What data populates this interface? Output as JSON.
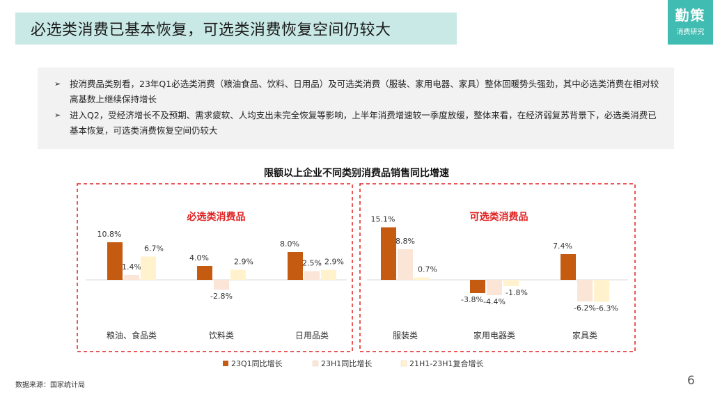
{
  "header": {
    "title": "必选类消费已基本恢复，可选类消费恢复空间仍较大"
  },
  "logo": {
    "name": "勤策",
    "sub": "消费研究"
  },
  "summary": {
    "bullets": [
      "按消费品类别看，23年Q1必选类消费（粮油食品、饮料、日用品）及可选类消费（服装、家用电器、家具）整体回暖势头强劲，其中必选类消费在相对较高基数上继续保持增长",
      "进入Q2，受经济增长不及预期、需求疲软、人均支出未完全恢复等影响，上半年消费增速较一季度放缓，整体来看，在经济弱复苏背景下，必选类消费已基本恢复，可选类消费恢复空间仍较大"
    ]
  },
  "footer": {
    "source": "数据来源：国家统计局",
    "page": "6"
  },
  "chart_data": {
    "type": "bar",
    "title": "限额以上企业不同类别消费品销售同比增速",
    "categories": [
      "粮油、食品类",
      "饮料类",
      "日用品类",
      "服装类",
      "家用电器类",
      "家具类"
    ],
    "groups": [
      {
        "label": "必选类消费品",
        "categories": [
          "粮油、食品类",
          "饮料类",
          "日用品类"
        ]
      },
      {
        "label": "可选类消费品",
        "categories": [
          "服装类",
          "家用电器类",
          "家具类"
        ]
      }
    ],
    "series": [
      {
        "name": "23Q1同比增长",
        "values": [
          10.8,
          4.0,
          8.0,
          15.1,
          -3.8,
          7.4
        ],
        "labels": [
          "10.8%",
          "4.0%",
          "8.0%",
          "15.1%",
          "-3.8%",
          "7.4%"
        ],
        "color": "#c55a11"
      },
      {
        "name": "23H1同比增长",
        "values": [
          1.4,
          -2.8,
          2.5,
          8.8,
          -4.4,
          -6.2
        ],
        "labels": [
          "1.4%",
          "-2.8%",
          "2.5%",
          "8.8%",
          "-4.4%",
          "-6.2%"
        ],
        "color": "#fbe5d6"
      },
      {
        "name": "21H1-23H1复合增长",
        "values": [
          6.7,
          2.9,
          2.9,
          0.7,
          -1.8,
          -6.3
        ],
        "labels": [
          "6.7%",
          "2.9%",
          "2.9%",
          "0.7%",
          "-1.8%",
          "-6.3%"
        ],
        "color": "#fff2cc"
      }
    ],
    "legend_position": "bottom",
    "group_color": "#e02020"
  }
}
